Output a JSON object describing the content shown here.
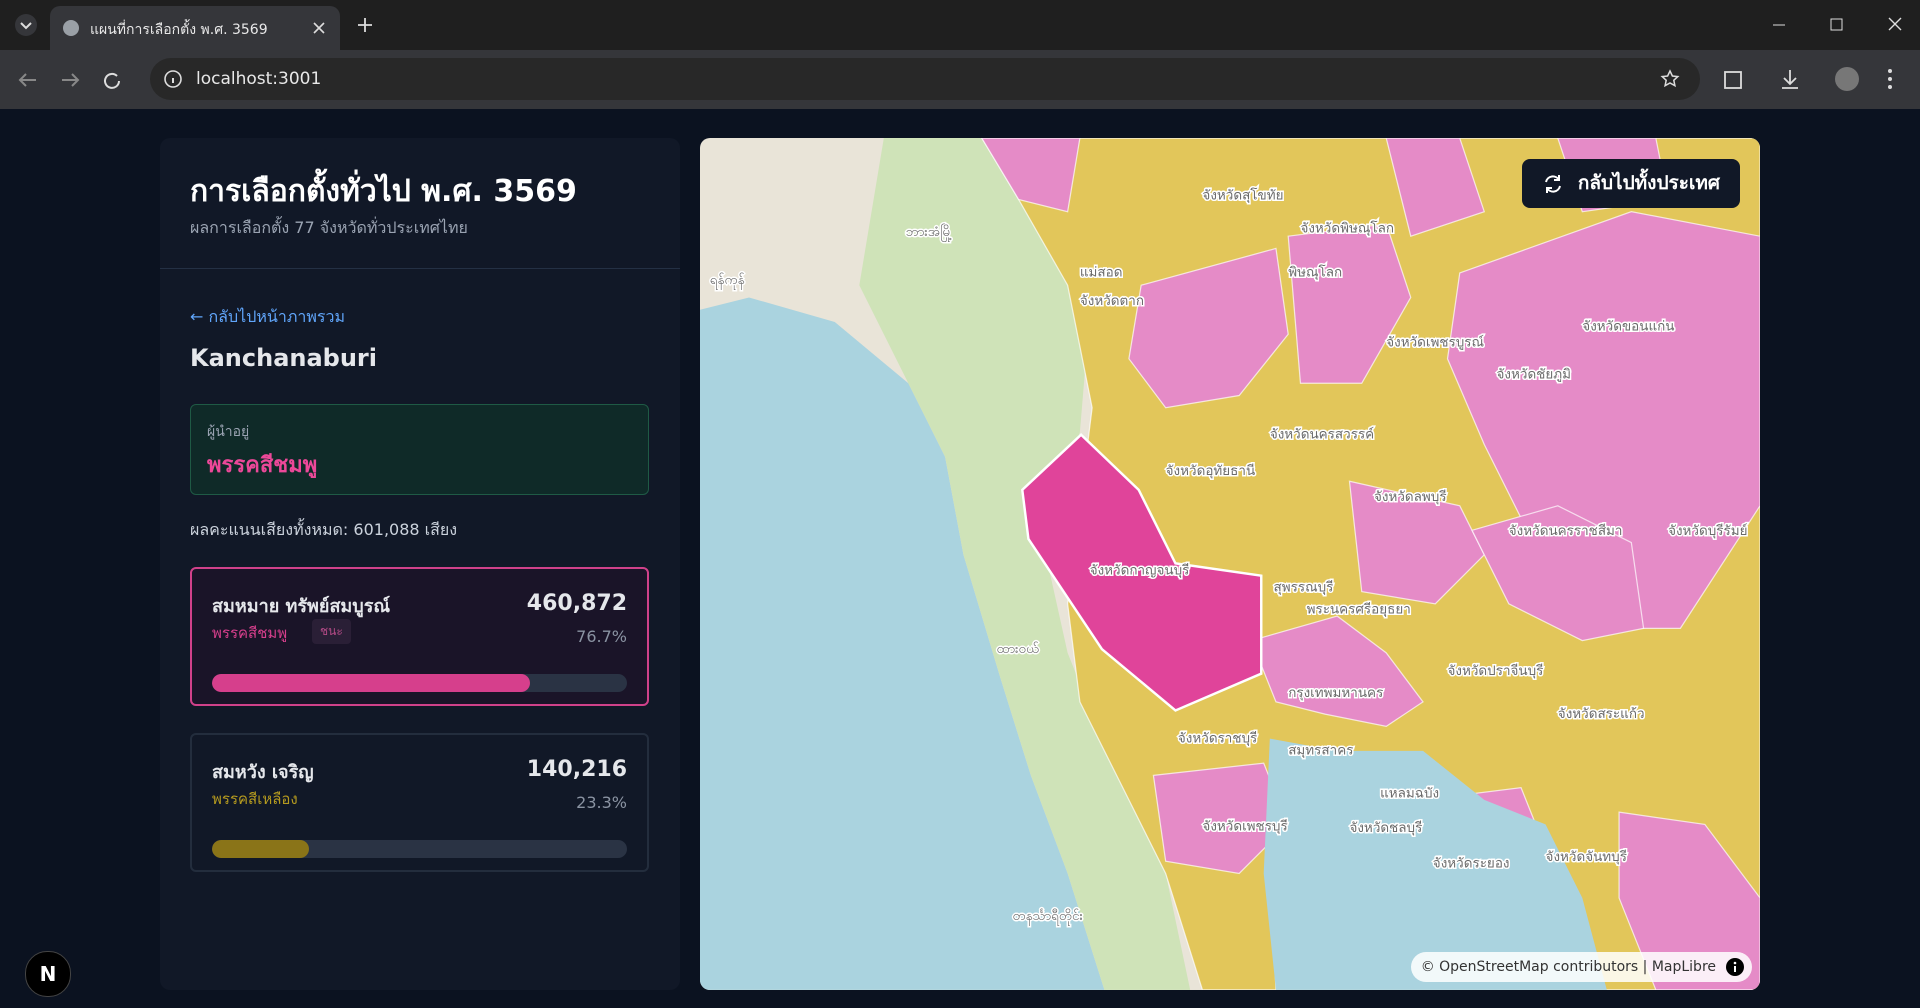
{
  "browser": {
    "tab_title": "แผนที่การเลือกตั้ง พ.ศ. 3569",
    "url": "localhost:3001"
  },
  "sidebar": {
    "title": "การเลือกตั้งทั่วไป พ.ศ. 3569",
    "subtitle": "ผลการเลือกตั้ง 77 จังหวัดทั่วประเทศไทย",
    "back_link": "← กลับไปหน้าภาพรวม",
    "province": "Kanchanaburi",
    "leader_label": "ผู้นำอยู่",
    "leader_party": "พรรคสีชมพู",
    "total_votes": "ผลคะแนนเสียงทั้งหมด: 601,088 เสียง",
    "candidates": [
      {
        "name": "สมหมาย ทรัพย์สมบูรณ์",
        "party": "พรรคสีชมพู",
        "badge": "ชนะ",
        "votes": "460,872",
        "share": {
          "value": 76.7,
          "label": "76.7%"
        }
      },
      {
        "name": "สมหวัง เจริญ",
        "party": "พรรคสีเหลือง",
        "votes": "140,216",
        "share": {
          "value": 23.3,
          "label": "23.3%"
        }
      }
    ]
  },
  "map": {
    "reset_button": "กลับไปทั้งประเทศ",
    "attribution": "© OpenStreetMap contributors | MapLibre",
    "labels": [
      "จังหวัดสุโขทัย",
      "จังหวัดพิษณุโลก",
      "พิษณุโลก",
      "แม่สอด",
      "จังหวัดตาก",
      "จังหวัดเพชรบูรณ์",
      "จังหวัดขอนแก่น",
      "จังหวัดชัยภูมิ",
      "จังหวัดนครสวรรค์",
      "จังหวัดอุทัยธานี",
      "จังหวัดลพบุรี",
      "จังหวัดนครราชสีมา",
      "จังหวัดบุรีรัมย์",
      "จังหวัดกาญจนบุรี",
      "สุพรรณบุรี",
      "พระนครศรีอยุธยา",
      "จังหวัดปราจีนบุรี",
      "กรุงเทพมหานคร",
      "จังหวัดสระแก้ว",
      "จังหวัดราชบุรี",
      "สมุทรสาคร",
      "แหลมฉบัง",
      "จังหวัดเพชรบุรี",
      "จังหวัดชลบุรี",
      "จังหวัดระยอง",
      "จังหวัดจันทบุรี",
      "ဘားအံမြို့",
      "ရန်ကုန်",
      "ထားဝယ်",
      "တနင်္သာရီတိုင်း"
    ]
  },
  "dev_badge": "N"
}
